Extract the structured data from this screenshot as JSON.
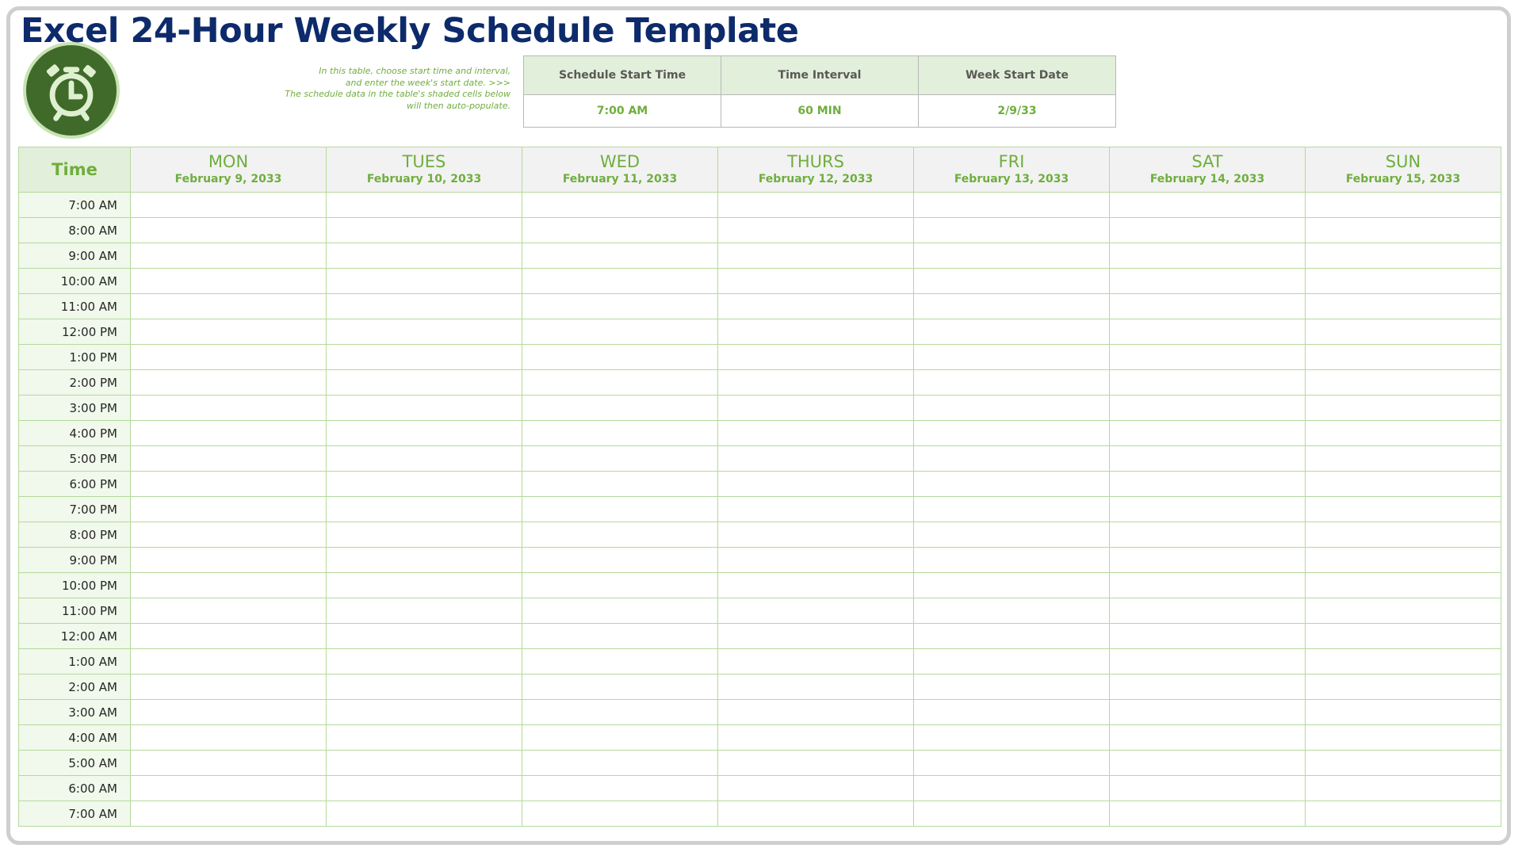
{
  "title": "Excel 24-Hour Weekly Schedule Template",
  "logo_icon": "alarm-clock-icon",
  "note_lines": [
    "In this table, choose start time and interval,",
    "and enter the week's start date. >>>",
    "The schedule data in the table's shaded cells below",
    "will then auto-populate."
  ],
  "settings": {
    "headers": [
      "Schedule Start Time",
      "Time Interval",
      "Week Start Date"
    ],
    "values": [
      "7:00 AM",
      "60 MIN",
      "2/9/33"
    ]
  },
  "schedule": {
    "time_header": "Time",
    "days": [
      {
        "name": "MON",
        "date": "February 9, 2033"
      },
      {
        "name": "TUES",
        "date": "February 10, 2033"
      },
      {
        "name": "WED",
        "date": "February 11, 2033"
      },
      {
        "name": "THURS",
        "date": "February 12, 2033"
      },
      {
        "name": "FRI",
        "date": "February 13, 2033"
      },
      {
        "name": "SAT",
        "date": "February 14, 2033"
      },
      {
        "name": "SUN",
        "date": "February 15, 2033"
      }
    ],
    "times": [
      "7:00 AM",
      "8:00 AM",
      "9:00 AM",
      "10:00 AM",
      "11:00 AM",
      "12:00 PM",
      "1:00 PM",
      "2:00 PM",
      "3:00 PM",
      "4:00 PM",
      "5:00 PM",
      "6:00 PM",
      "7:00 PM",
      "8:00 PM",
      "9:00 PM",
      "10:00 PM",
      "11:00 PM",
      "12:00 AM",
      "1:00 AM",
      "2:00 AM",
      "3:00 AM",
      "4:00 AM",
      "5:00 AM",
      "6:00 AM",
      "7:00 AM"
    ]
  },
  "colors": {
    "title": "#0d2a6b",
    "accent_green": "#6fae3e",
    "grid_line": "#b5d99c",
    "logo_bg": "#3f6a2a"
  }
}
